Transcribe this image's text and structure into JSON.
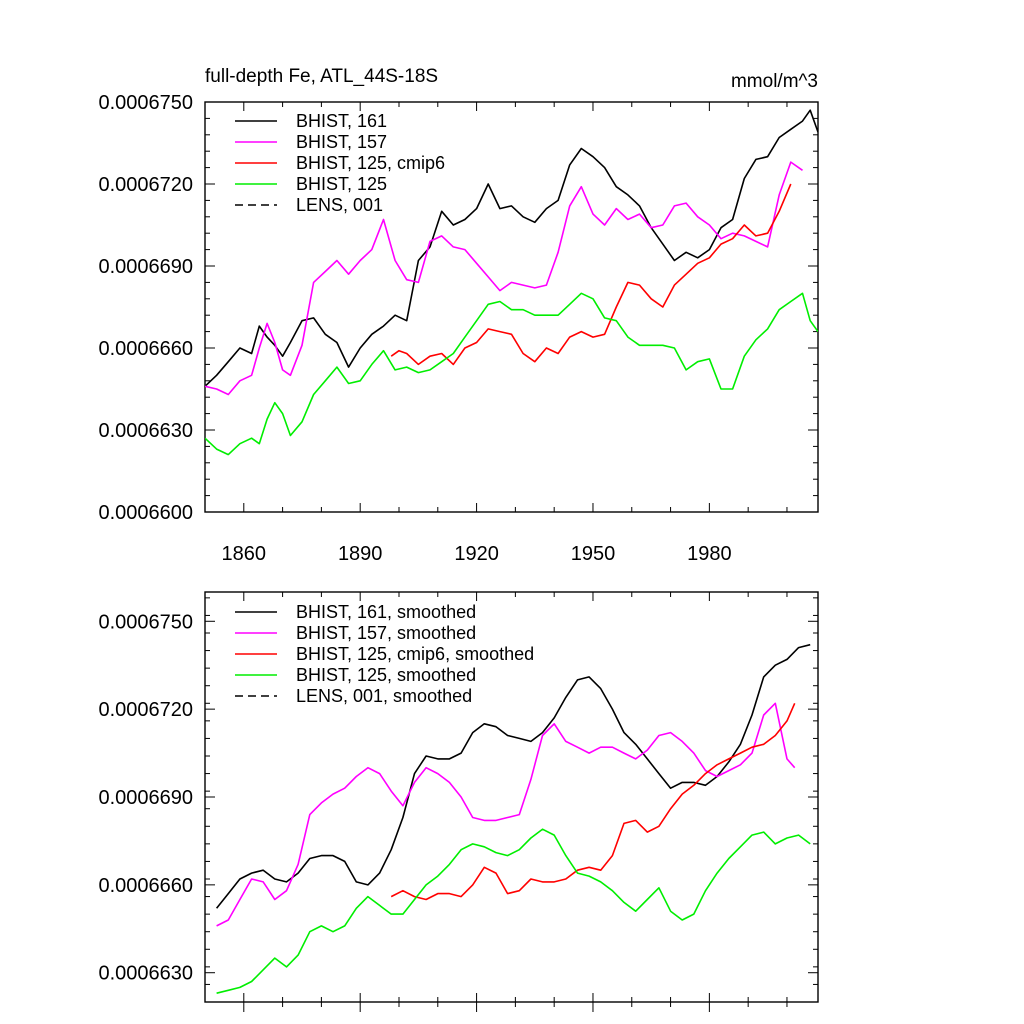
{
  "chart_data": [
    {
      "type": "line",
      "title": "full-depth Fe, ATL_44S-18S",
      "units": "mmol/m^3",
      "xlim": [
        1850,
        2008
      ],
      "ylim": [
        0.00066,
        0.000675
      ],
      "x_ticks": [
        "1860",
        "1890",
        "1920",
        "1950",
        "1980"
      ],
      "y_ticks": [
        "0.0006600",
        "0.0006630",
        "0.0006660",
        "0.0006690",
        "0.0006720",
        "0.0006750"
      ],
      "legend_position": "top-left",
      "series": [
        {
          "name": "BHIST, 161",
          "color": "#000000",
          "dash": false,
          "x": [
            1850,
            1853,
            1856,
            1859,
            1862,
            1864,
            1866,
            1868,
            1870,
            1872,
            1875,
            1878,
            1881,
            1884,
            1887,
            1890,
            1893,
            1896,
            1899,
            1902,
            1905,
            1908,
            1911,
            1914,
            1917,
            1920,
            1923,
            1926,
            1929,
            1932,
            1935,
            1938,
            1941,
            1944,
            1947,
            1950,
            1953,
            1956,
            1959,
            1962,
            1965,
            1968,
            1971,
            1974,
            1977,
            1980,
            1983,
            1986,
            1989,
            1992,
            1995,
            1998,
            2001,
            2004,
            2006,
            2008
          ],
          "y": [
            0.0006646,
            0.000665,
            0.0006655,
            0.000666,
            0.0006658,
            0.0006668,
            0.0006664,
            0.0006661,
            0.0006657,
            0.0006662,
            0.000667,
            0.0006671,
            0.0006665,
            0.0006662,
            0.0006653,
            0.000666,
            0.0006665,
            0.0006668,
            0.0006672,
            0.000667,
            0.0006692,
            0.0006697,
            0.000671,
            0.0006705,
            0.0006707,
            0.0006711,
            0.000672,
            0.0006711,
            0.0006712,
            0.0006708,
            0.0006706,
            0.0006711,
            0.0006714,
            0.0006727,
            0.0006733,
            0.000673,
            0.0006726,
            0.0006719,
            0.0006716,
            0.0006712,
            0.0006704,
            0.0006698,
            0.0006692,
            0.0006695,
            0.0006693,
            0.0006696,
            0.0006704,
            0.0006707,
            0.0006722,
            0.0006729,
            0.000673,
            0.0006737,
            0.000674,
            0.0006743,
            0.0006747,
            0.0006739
          ]
        },
        {
          "name": "BHIST, 157",
          "color": "#ff00ff",
          "dash": false,
          "x": [
            1850,
            1853,
            1856,
            1859,
            1862,
            1864,
            1866,
            1868,
            1870,
            1872,
            1875,
            1878,
            1881,
            1884,
            1887,
            1890,
            1893,
            1896,
            1899,
            1902,
            1905,
            1908,
            1911,
            1914,
            1917,
            1920,
            1923,
            1926,
            1929,
            1932,
            1935,
            1938,
            1941,
            1944,
            1947,
            1950,
            1953,
            1956,
            1959,
            1962,
            1965,
            1968,
            1971,
            1974,
            1977,
            1980,
            1983,
            1986,
            1989,
            1992,
            1995,
            1998,
            2001,
            2004
          ],
          "y": [
            0.0006646,
            0.0006645,
            0.0006643,
            0.0006648,
            0.000665,
            0.000666,
            0.0006669,
            0.0006662,
            0.0006652,
            0.000665,
            0.0006661,
            0.0006684,
            0.0006688,
            0.0006692,
            0.0006687,
            0.0006692,
            0.0006696,
            0.0006707,
            0.0006692,
            0.0006685,
            0.0006684,
            0.0006699,
            0.0006701,
            0.0006697,
            0.0006696,
            0.0006691,
            0.0006686,
            0.0006681,
            0.0006684,
            0.0006683,
            0.0006682,
            0.0006683,
            0.0006695,
            0.0006712,
            0.0006719,
            0.0006709,
            0.0006705,
            0.0006711,
            0.0006707,
            0.0006709,
            0.0006704,
            0.0006705,
            0.0006712,
            0.0006713,
            0.0006708,
            0.0006705,
            0.00067,
            0.0006702,
            0.0006701,
            0.0006699,
            0.0006697,
            0.0006716,
            0.0006728,
            0.0006725
          ]
        },
        {
          "name": "BHIST, 125, cmip6",
          "color": "#ff0000",
          "dash": false,
          "x": [
            1898,
            1900,
            1902,
            1905,
            1908,
            1911,
            1914,
            1917,
            1920,
            1923,
            1926,
            1929,
            1932,
            1935,
            1938,
            1941,
            1944,
            1947,
            1950,
            1953,
            1956,
            1959,
            1962,
            1965,
            1968,
            1971,
            1974,
            1977,
            1980,
            1983,
            1986,
            1989,
            1992,
            1995,
            1998,
            2001
          ],
          "y": [
            0.0006657,
            0.0006659,
            0.0006658,
            0.0006654,
            0.0006657,
            0.0006658,
            0.0006654,
            0.000666,
            0.0006662,
            0.0006667,
            0.0006666,
            0.0006665,
            0.0006658,
            0.0006655,
            0.000666,
            0.0006658,
            0.0006664,
            0.0006666,
            0.0006664,
            0.0006665,
            0.0006675,
            0.0006684,
            0.0006683,
            0.0006678,
            0.0006675,
            0.0006683,
            0.0006687,
            0.0006691,
            0.0006693,
            0.0006698,
            0.00067,
            0.0006705,
            0.0006701,
            0.0006702,
            0.000671,
            0.000672
          ]
        },
        {
          "name": "BHIST, 125",
          "color": "#00ee00",
          "dash": false,
          "x": [
            1850,
            1853,
            1856,
            1859,
            1862,
            1864,
            1866,
            1868,
            1870,
            1872,
            1875,
            1878,
            1881,
            1884,
            1887,
            1890,
            1893,
            1896,
            1899,
            1902,
            1905,
            1908,
            1911,
            1914,
            1917,
            1920,
            1923,
            1926,
            1929,
            1932,
            1935,
            1938,
            1941,
            1944,
            1947,
            1950,
            1953,
            1956,
            1959,
            1962,
            1965,
            1968,
            1971,
            1974,
            1977,
            1980,
            1983,
            1986,
            1989,
            1992,
            1995,
            1998,
            2001,
            2004,
            2006,
            2008
          ],
          "y": [
            0.0006627,
            0.0006623,
            0.0006621,
            0.0006625,
            0.0006627,
            0.0006625,
            0.0006634,
            0.000664,
            0.0006636,
            0.0006628,
            0.0006633,
            0.0006643,
            0.0006648,
            0.0006653,
            0.0006647,
            0.0006648,
            0.0006654,
            0.0006659,
            0.0006652,
            0.0006653,
            0.0006651,
            0.0006652,
            0.0006655,
            0.0006658,
            0.0006664,
            0.000667,
            0.0006676,
            0.0006677,
            0.0006674,
            0.0006674,
            0.0006672,
            0.0006672,
            0.0006672,
            0.0006676,
            0.000668,
            0.0006678,
            0.0006671,
            0.000667,
            0.0006664,
            0.0006661,
            0.0006661,
            0.0006661,
            0.000666,
            0.0006652,
            0.0006655,
            0.0006656,
            0.0006645,
            0.0006645,
            0.0006657,
            0.0006663,
            0.0006667,
            0.0006674,
            0.0006677,
            0.000668,
            0.000667,
            0.0006666
          ]
        },
        {
          "name": "LENS, 001",
          "color": "#000000",
          "dash": true,
          "x": [],
          "y": []
        }
      ]
    },
    {
      "type": "line",
      "title": "",
      "xlim": [
        1850,
        2008
      ],
      "ylim": [
        0.000662,
        0.000676
      ],
      "x_ticks": [],
      "y_ticks": [
        "0.0006630",
        "0.0006660",
        "0.0006690",
        "0.0006720",
        "0.0006750"
      ],
      "legend_position": "top-left",
      "series": [
        {
          "name": "BHIST, 161, smoothed",
          "color": "#000000",
          "dash": false,
          "x": [
            1853,
            1856,
            1859,
            1862,
            1865,
            1868,
            1871,
            1874,
            1877,
            1880,
            1883,
            1886,
            1889,
            1892,
            1895,
            1898,
            1901,
            1904,
            1907,
            1910,
            1913,
            1916,
            1919,
            1922,
            1925,
            1928,
            1931,
            1934,
            1937,
            1940,
            1943,
            1946,
            1949,
            1952,
            1955,
            1958,
            1961,
            1964,
            1967,
            1970,
            1973,
            1976,
            1979,
            1982,
            1985,
            1988,
            1991,
            1994,
            1997,
            2000,
            2003,
            2006
          ],
          "y": [
            0.0006652,
            0.0006657,
            0.0006662,
            0.0006664,
            0.0006665,
            0.0006662,
            0.0006661,
            0.0006664,
            0.0006669,
            0.000667,
            0.000667,
            0.0006668,
            0.0006661,
            0.000666,
            0.0006664,
            0.0006672,
            0.0006683,
            0.0006698,
            0.0006704,
            0.0006703,
            0.0006703,
            0.0006705,
            0.0006712,
            0.0006715,
            0.0006714,
            0.0006711,
            0.000671,
            0.0006709,
            0.0006712,
            0.0006717,
            0.0006724,
            0.000673,
            0.0006731,
            0.0006727,
            0.000672,
            0.0006712,
            0.0006708,
            0.0006703,
            0.0006698,
            0.0006693,
            0.0006695,
            0.0006695,
            0.0006694,
            0.0006697,
            0.0006702,
            0.0006708,
            0.0006718,
            0.0006731,
            0.0006735,
            0.0006737,
            0.0006741,
            0.0006742
          ]
        },
        {
          "name": "BHIST, 157, smoothed",
          "color": "#ff00ff",
          "dash": false,
          "x": [
            1853,
            1856,
            1859,
            1862,
            1865,
            1868,
            1871,
            1874,
            1877,
            1880,
            1883,
            1886,
            1889,
            1892,
            1895,
            1898,
            1901,
            1904,
            1907,
            1910,
            1913,
            1916,
            1919,
            1922,
            1925,
            1928,
            1931,
            1934,
            1937,
            1940,
            1943,
            1946,
            1949,
            1952,
            1955,
            1958,
            1961,
            1964,
            1967,
            1970,
            1973,
            1976,
            1979,
            1982,
            1985,
            1988,
            1991,
            1994,
            1997,
            2000,
            2002
          ],
          "y": [
            0.0006646,
            0.0006648,
            0.0006655,
            0.0006662,
            0.0006661,
            0.0006655,
            0.0006658,
            0.0006667,
            0.0006684,
            0.0006688,
            0.0006691,
            0.0006693,
            0.0006697,
            0.00067,
            0.0006698,
            0.0006692,
            0.0006687,
            0.0006695,
            0.00067,
            0.0006698,
            0.0006695,
            0.000669,
            0.0006683,
            0.0006682,
            0.0006682,
            0.0006683,
            0.0006684,
            0.0006696,
            0.0006711,
            0.0006715,
            0.0006709,
            0.0006707,
            0.0006705,
            0.0006707,
            0.0006707,
            0.0006705,
            0.0006703,
            0.0006706,
            0.0006711,
            0.0006712,
            0.0006709,
            0.0006705,
            0.0006699,
            0.0006697,
            0.0006699,
            0.0006701,
            0.0006705,
            0.0006718,
            0.0006722,
            0.0006703,
            0.00067
          ]
        },
        {
          "name": "BHIST, 125, cmip6, smoothed",
          "color": "#ff0000",
          "dash": false,
          "x": [
            1898,
            1901,
            1904,
            1907,
            1910,
            1913,
            1916,
            1919,
            1922,
            1925,
            1928,
            1931,
            1934,
            1937,
            1940,
            1943,
            1946,
            1949,
            1952,
            1955,
            1958,
            1961,
            1964,
            1967,
            1970,
            1973,
            1976,
            1979,
            1982,
            1985,
            1988,
            1991,
            1994,
            1997,
            2000,
            2002
          ],
          "y": [
            0.0006656,
            0.0006658,
            0.0006656,
            0.0006655,
            0.0006657,
            0.0006657,
            0.0006656,
            0.000666,
            0.0006666,
            0.0006664,
            0.0006657,
            0.0006658,
            0.0006662,
            0.0006661,
            0.0006661,
            0.0006662,
            0.0006665,
            0.0006666,
            0.0006665,
            0.000667,
            0.0006681,
            0.0006682,
            0.0006678,
            0.000668,
            0.0006686,
            0.0006691,
            0.0006694,
            0.0006698,
            0.0006701,
            0.0006703,
            0.0006705,
            0.0006707,
            0.0006708,
            0.0006711,
            0.0006716,
            0.0006722
          ]
        },
        {
          "name": "BHIST, 125, smoothed",
          "color": "#00ee00",
          "dash": false,
          "x": [
            1853,
            1856,
            1859,
            1862,
            1865,
            1868,
            1871,
            1874,
            1877,
            1880,
            1883,
            1886,
            1889,
            1892,
            1895,
            1898,
            1901,
            1904,
            1907,
            1910,
            1913,
            1916,
            1919,
            1922,
            1925,
            1928,
            1931,
            1934,
            1937,
            1940,
            1943,
            1946,
            1949,
            1952,
            1955,
            1958,
            1961,
            1964,
            1967,
            1970,
            1973,
            1976,
            1979,
            1982,
            1985,
            1988,
            1991,
            1994,
            1997,
            2000,
            2003,
            2006
          ],
          "y": [
            0.0006623,
            0.0006624,
            0.0006625,
            0.0006627,
            0.0006631,
            0.0006635,
            0.0006632,
            0.0006636,
            0.0006644,
            0.0006646,
            0.0006644,
            0.0006646,
            0.0006652,
            0.0006656,
            0.0006653,
            0.000665,
            0.000665,
            0.0006655,
            0.000666,
            0.0006663,
            0.0006667,
            0.0006672,
            0.0006674,
            0.0006673,
            0.0006671,
            0.000667,
            0.0006672,
            0.0006676,
            0.0006679,
            0.0006677,
            0.000667,
            0.0006664,
            0.0006663,
            0.0006661,
            0.0006658,
            0.0006654,
            0.0006651,
            0.0006655,
            0.0006659,
            0.0006651,
            0.0006648,
            0.000665,
            0.0006658,
            0.0006664,
            0.0006669,
            0.0006673,
            0.0006677,
            0.0006678,
            0.0006674,
            0.0006676,
            0.0006677,
            0.0006674
          ]
        },
        {
          "name": "LENS, 001, smoothed",
          "color": "#000000",
          "dash": true,
          "x": [],
          "y": []
        }
      ]
    }
  ]
}
